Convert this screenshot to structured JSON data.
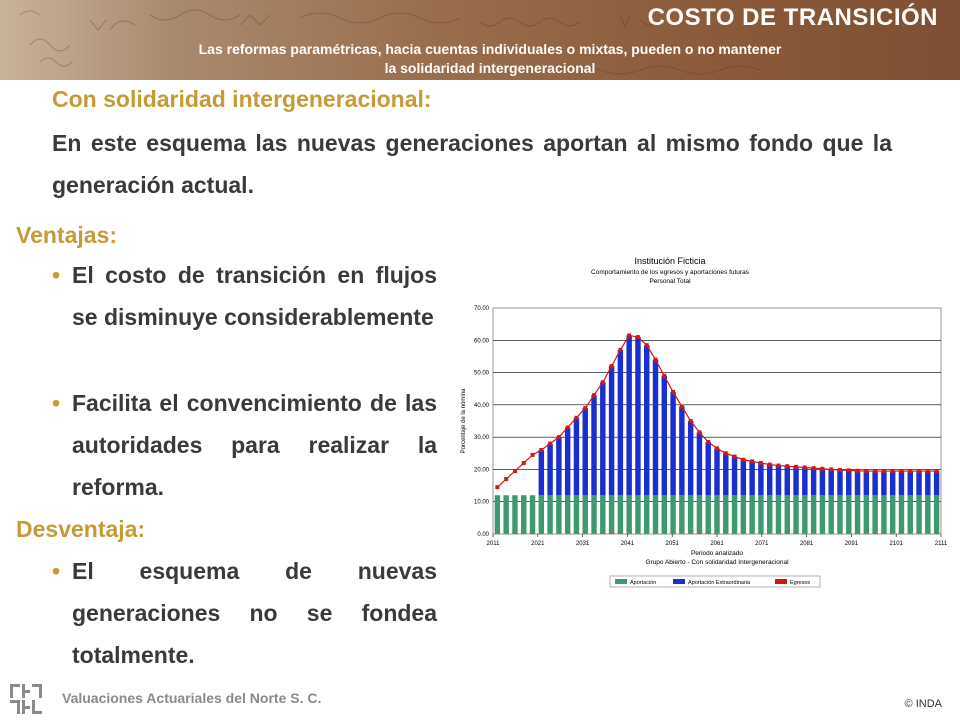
{
  "header": {
    "title": "COSTO DE TRANSICIÓN",
    "subtitle_line1": "Las reformas paramétricas, hacia cuentas individuales o mixtas, pueden o no mantener",
    "subtitle_line2": "la solidaridad intergeneracional"
  },
  "section": {
    "heading": "Con solidaridad intergeneracional:",
    "intro": "En este esquema las nuevas generaciones aportan al mismo fondo que la generación actual."
  },
  "ventajas": {
    "heading": "Ventajas:",
    "items": [
      "El costo de transición en flujos se disminuye considerablemente",
      "Facilita el convencimiento de las autoridades para realizar la reforma."
    ]
  },
  "desventaja": {
    "heading": "Desventaja:",
    "items": [
      "El esquema de nuevas generaciones no se fondea totalmente."
    ]
  },
  "footer": {
    "company": "Valuaciones Actuariales del Norte S. C.",
    "copyright": "© INDA"
  },
  "chart_data": {
    "type": "bar",
    "title": "Institución Ficticia",
    "subtitle1": "Comportamiento de los egresos y aportaciones futuras",
    "subtitle2": "Personal Total",
    "xlabel": "Periodo analizado",
    "xlabel2": "Grupo Abierto - Con solidaridad Intergeneracional",
    "ylabel": "Porcentaje de la nómina",
    "ylim": [
      0,
      70
    ],
    "yticks": [
      "0.00",
      "10.00",
      "20.00",
      "30.00",
      "40.00",
      "50.00",
      "60.00",
      "70.00"
    ],
    "xticks": [
      "2011",
      "2021",
      "2031",
      "2041",
      "2051",
      "2061",
      "2071",
      "2081",
      "2091",
      "2101",
      "2111"
    ],
    "x": [
      "2011",
      "2013",
      "2015",
      "2017",
      "2019",
      "2021",
      "2023",
      "2025",
      "2027",
      "2029",
      "2031",
      "2033",
      "2035",
      "2037",
      "2039",
      "2041",
      "2043",
      "2045",
      "2047",
      "2049",
      "2051",
      "2053",
      "2055",
      "2057",
      "2059",
      "2061",
      "2063",
      "2065",
      "2067",
      "2069",
      "2071",
      "2073",
      "2075",
      "2077",
      "2079",
      "2081",
      "2083",
      "2085",
      "2087",
      "2089",
      "2091",
      "2093",
      "2095",
      "2097",
      "2099",
      "2101",
      "2103",
      "2105",
      "2107",
      "2109",
      "2111"
    ],
    "series": [
      {
        "name": "Aportación",
        "color": "#3e9a6e",
        "values": [
          12,
          12,
          12,
          12,
          12,
          12,
          12,
          12,
          12,
          12,
          12,
          12,
          12,
          12,
          12,
          12,
          12,
          12,
          12,
          12,
          12,
          12,
          12,
          12,
          12,
          12,
          12,
          12,
          12,
          12,
          12,
          12,
          12,
          12,
          12,
          12,
          12,
          12,
          12,
          12,
          12,
          12,
          12,
          12,
          12,
          12,
          12,
          12,
          12,
          12,
          12
        ]
      },
      {
        "name": "Aportación Extraordinaria",
        "color": "#1a2fd0",
        "values": [
          0,
          0,
          0,
          0,
          0,
          14,
          16,
          18,
          21,
          24,
          27,
          31,
          35,
          40,
          45,
          49.5,
          49,
          46.5,
          42,
          37,
          32,
          27.5,
          23,
          19.5,
          16.5,
          14.5,
          13,
          12,
          11,
          10.5,
          10,
          9.5,
          9.2,
          9,
          8.8,
          8.6,
          8.4,
          8.2,
          8,
          7.8,
          7.7,
          7.6,
          7.5,
          7.5,
          7.5,
          7.5,
          7.5,
          7.5,
          7.5,
          7.5,
          7.5
        ]
      },
      {
        "name": "Egresos",
        "color": "#d01818",
        "values": [
          14.5,
          17,
          19.5,
          22,
          24.5,
          26,
          28,
          30,
          33,
          36,
          39,
          43,
          47,
          52,
          57,
          61.5,
          61,
          58.5,
          54,
          49,
          44,
          39.5,
          35,
          31.5,
          28.5,
          26.5,
          25,
          24,
          23,
          22.5,
          22,
          21.5,
          21.2,
          21,
          20.8,
          20.6,
          20.4,
          20.2,
          20,
          19.8,
          19.7,
          19.6,
          19.5,
          19.5,
          19.5,
          19.5,
          19.5,
          19.5,
          19.5,
          19.5,
          19.5
        ]
      }
    ],
    "legend_position": "bottom"
  }
}
